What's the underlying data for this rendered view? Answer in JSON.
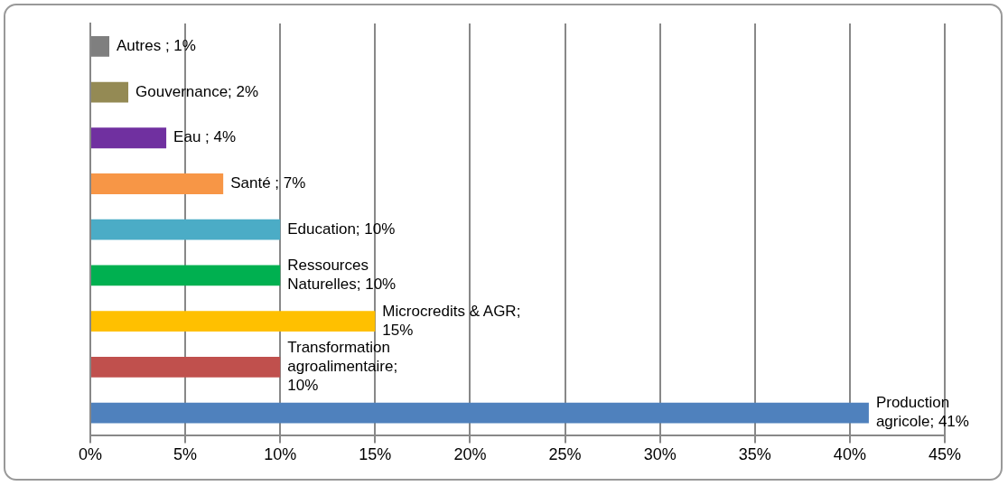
{
  "chart_data": {
    "type": "bar",
    "orientation": "horizontal",
    "categories": [
      null,
      null,
      null,
      null,
      null,
      null,
      null,
      null,
      null
    ],
    "values": [
      1,
      2,
      4,
      7,
      10,
      10,
      15,
      10,
      41
    ],
    "colors": [
      "#7f7f7f",
      "#948a54",
      "#7030a0",
      "#f79646",
      "#4bacc6",
      "#00b050",
      "#ffc000",
      "#c0504d",
      "#4f81bd"
    ],
    "value_labels": [
      "Autres ; 1%",
      "Gouvernance; 2%",
      "Eau ; 4%",
      "Santé ; 7%",
      "Education; 10%",
      "Ressources Naturelles; 10%",
      "Microcredits & AGR; 15%",
      "Transformation agroalimentaire; 10%",
      "Production agricole; 41%"
    ],
    "xlim": [
      0,
      45
    ],
    "xticks": [
      {
        "value": 0,
        "label": "0%"
      },
      {
        "value": 5,
        "label": "5%"
      },
      {
        "value": 10,
        "label": "10%"
      },
      {
        "value": 15,
        "label": "15%"
      },
      {
        "value": 20,
        "label": "20%"
      },
      {
        "value": 25,
        "label": "25%"
      },
      {
        "value": 30,
        "label": "30%"
      },
      {
        "value": 35,
        "label": "35%"
      },
      {
        "value": 40,
        "label": "40%"
      },
      {
        "value": 45,
        "label": "45%"
      }
    ],
    "grid": "x"
  }
}
